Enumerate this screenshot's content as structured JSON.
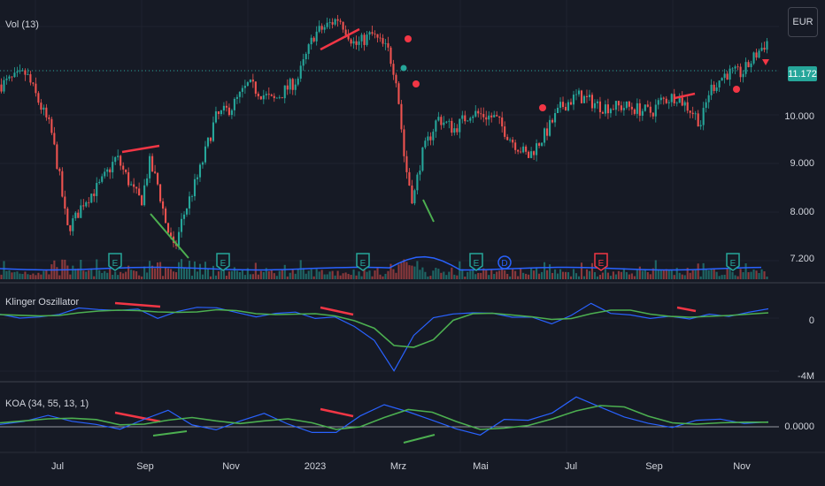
{
  "panes": {
    "main": {
      "label": "Vol (13)"
    },
    "klinger": {
      "label": "Klinger Oszillator"
    },
    "koa": {
      "label": "KOA (34, 55, 13, 1)"
    }
  },
  "currency_button": {
    "label": "EUR"
  },
  "price_axis": {
    "current_price": "11.172",
    "ticks": [
      "10.000",
      "9.000",
      "8.000",
      "7.200"
    ]
  },
  "klinger_axis": {
    "ticks": [
      "0",
      "-4M"
    ]
  },
  "koa_axis": {
    "ticks": [
      "0.0000"
    ]
  },
  "time_axis": {
    "labels": [
      "Jul",
      "Sep",
      "Nov",
      "2023",
      "Mrz",
      "Mai",
      "Jul",
      "Sep",
      "Nov"
    ]
  },
  "event_markers": [
    "E",
    "E",
    "E",
    "E",
    "D",
    "E",
    "E"
  ],
  "colors": {
    "background": "#161a25",
    "up": "#26a69a",
    "down": "#ef5350",
    "klinger_line": "#2962ff",
    "signal_line": "#4caf50",
    "divergence": "#f23645",
    "pane_border": "#2a2e39"
  },
  "chart_data": {
    "type": "candlestick",
    "x_axis_labels": [
      "Jul",
      "Sep",
      "Nov",
      "2023",
      "Mrz",
      "Mai",
      "Jul",
      "Sep",
      "Nov"
    ],
    "price_range": [
      7.0,
      11.6
    ],
    "last_price": 11.172,
    "close_path": [
      [
        0,
        10.4
      ],
      [
        3,
        10.6
      ],
      [
        6,
        9.6
      ],
      [
        7,
        8.8
      ],
      [
        8,
        7.8
      ],
      [
        9,
        8.0
      ],
      [
        10,
        8.3
      ],
      [
        12,
        8.6
      ],
      [
        14,
        9.1
      ],
      [
        16,
        8.5
      ],
      [
        17,
        8.3
      ],
      [
        18,
        9.0
      ],
      [
        19,
        8.6
      ],
      [
        20,
        7.9
      ],
      [
        21,
        7.4
      ],
      [
        22,
        8.0
      ],
      [
        24,
        8.8
      ],
      [
        26,
        9.8
      ],
      [
        28,
        10.0
      ],
      [
        30,
        10.4
      ],
      [
        33,
        10.1
      ],
      [
        36,
        10.5
      ],
      [
        38,
        11.3
      ],
      [
        40,
        11.5
      ],
      [
        41,
        11.6
      ],
      [
        43,
        11.1
      ],
      [
        45,
        11.3
      ],
      [
        47,
        11.0
      ],
      [
        48,
        10.5
      ],
      [
        49,
        9.0
      ],
      [
        50,
        8.3
      ],
      [
        51,
        9.1
      ],
      [
        53,
        9.8
      ],
      [
        55,
        9.6
      ],
      [
        57,
        9.9
      ],
      [
        60,
        9.8
      ],
      [
        62,
        9.4
      ],
      [
        64,
        9.1
      ],
      [
        66,
        9.5
      ],
      [
        68,
        10.0
      ],
      [
        70,
        10.2
      ],
      [
        73,
        10.0
      ],
      [
        76,
        10.0
      ],
      [
        79,
        9.9
      ],
      [
        80,
        10.1
      ],
      [
        82,
        10.2
      ],
      [
        84,
        9.9
      ],
      [
        85,
        9.7
      ],
      [
        86,
        10.3
      ],
      [
        88,
        10.6
      ],
      [
        90,
        10.6
      ],
      [
        92,
        11.0
      ],
      [
        93,
        11.17
      ]
    ],
    "klinger": [
      0.4,
      0.3,
      0.2,
      0.5,
      0.9,
      0.6,
      0.7,
      0.8,
      0.3,
      0.6,
      0.9,
      0.8,
      0.4,
      0.2,
      0.6,
      0.5,
      0.3,
      0.1,
      -0.6,
      -1.4,
      -3.8,
      -1.0,
      0.3,
      0.6,
      0.5,
      0.4,
      0.2,
      0.1,
      -0.2,
      0.4,
      1.2,
      0.6,
      0.4,
      0.3,
      0.1,
      0.2,
      0.5,
      0.3,
      0.5,
      0.8
    ],
    "koa": [
      0.1,
      0.2,
      0.3,
      0.15,
      0.1,
      -0.1,
      0.2,
      0.4,
      0.1,
      -0.05,
      0.2,
      0.3,
      0.1,
      -0.1,
      -0.2,
      0.3,
      0.6,
      0.4,
      0.1,
      -0.1,
      -0.2,
      0.2,
      0.1,
      0.3,
      0.8,
      0.5,
      0.2,
      0.1,
      0.0,
      0.1,
      0.2,
      0.05,
      0.1
    ]
  }
}
